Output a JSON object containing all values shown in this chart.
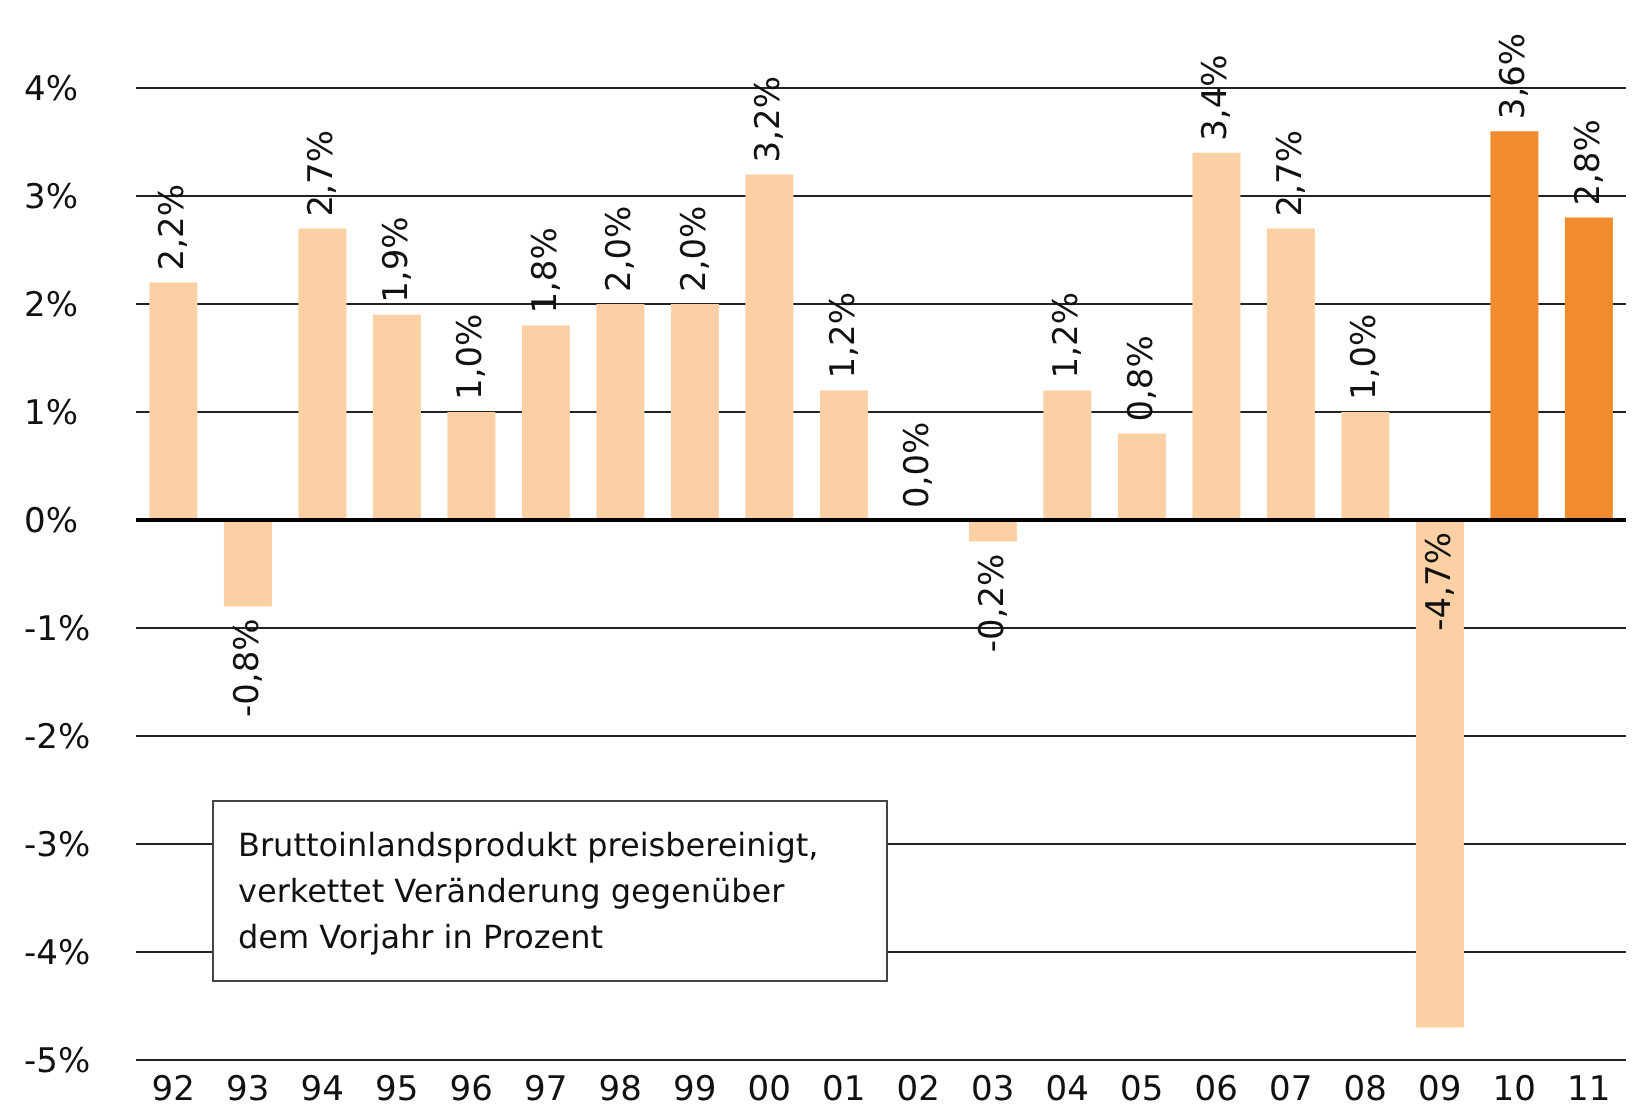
{
  "chart_data": {
    "type": "bar",
    "categories": [
      "92",
      "93",
      "94",
      "95",
      "96",
      "97",
      "98",
      "99",
      "00",
      "01",
      "02",
      "03",
      "04",
      "05",
      "06",
      "07",
      "08",
      "09",
      "10",
      "11"
    ],
    "values": [
      2.2,
      -0.8,
      2.7,
      1.9,
      1.0,
      1.8,
      2.0,
      2.0,
      3.2,
      1.2,
      0.0,
      -0.2,
      1.2,
      0.8,
      3.4,
      2.7,
      1.0,
      -4.7,
      3.6,
      2.8
    ],
    "colors": [
      "#fbd0a5",
      "#fbd0a5",
      "#fbd0a5",
      "#fbd0a5",
      "#fbd0a5",
      "#fbd0a5",
      "#fbd0a5",
      "#fbd0a5",
      "#fbd0a5",
      "#fbd0a5",
      "#fbd0a5",
      "#fbd0a5",
      "#fbd0a5",
      "#fbd0a5",
      "#fbd0a5",
      "#fbd0a5",
      "#fbd0a5",
      "#fbd0a5",
      "#f28a2e",
      "#f28a2e"
    ],
    "value_labels": [
      "2,2%",
      "-0,8%",
      "2,7%",
      "1,9%",
      "1,0%",
      "1,8%",
      "2,0%",
      "2,0%",
      "3,2%",
      "1,2%",
      "0,0%",
      "-0,2%",
      "1,2%",
      "0,8%",
      "3,4%",
      "2,7%",
      "1,0%",
      "-4,7%",
      "3,6%",
      "2,8%"
    ],
    "ylim": [
      -5,
      4
    ],
    "yticks": [
      {
        "value": 4,
        "label": "4%"
      },
      {
        "value": 3,
        "label": "3%"
      },
      {
        "value": 2,
        "label": "2%"
      },
      {
        "value": 1,
        "label": "1%"
      },
      {
        "value": 0,
        "label": "0%"
      },
      {
        "value": -1,
        "label": "-1%"
      },
      {
        "value": -2,
        "label": "-2%"
      },
      {
        "value": -3,
        "label": "-3%"
      },
      {
        "value": -4,
        "label": "-4%"
      },
      {
        "value": -5,
        "label": "-5%"
      }
    ],
    "grid": "y",
    "annotations": [
      "Bruttoinlandsprodukt preisbereinigt, verkettet Veränderung gegenüber dem Vorjahr in Prozent"
    ]
  }
}
